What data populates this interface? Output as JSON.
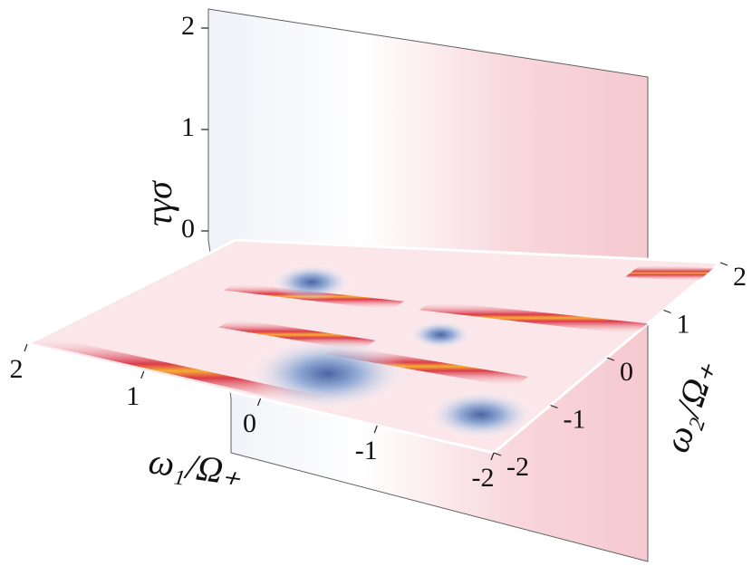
{
  "chart_data": {
    "type": "surface3d",
    "xlabel": "ω₁/Ω₊",
    "ylabel": "ω₂/Ω₊",
    "zlabel": "τγσ",
    "xlim": [
      -2,
      2
    ],
    "ylim": [
      -2,
      2
    ],
    "zlim": [
      0,
      2
    ],
    "xticks": [
      2,
      1,
      0,
      -1,
      -2
    ],
    "yticks": [
      -2,
      -1,
      0,
      1,
      2
    ],
    "zticks": [
      0,
      1,
      2
    ]
  }
}
